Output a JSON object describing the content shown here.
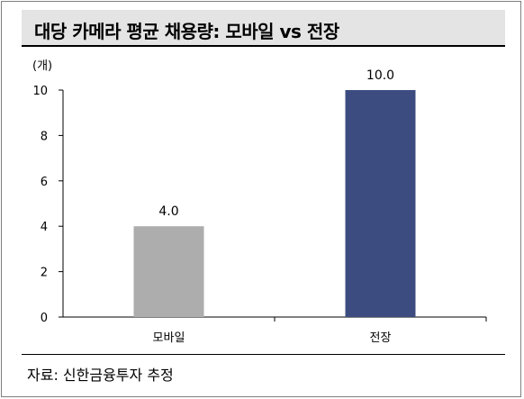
{
  "title": "대당 카메라 평균 채용량: 모바일 vs 전장",
  "unit_label": "(개)",
  "source": "자료: 신한금융투자 추정",
  "chart_data": {
    "type": "bar",
    "categories": [
      "모바일",
      "전장"
    ],
    "values": [
      4.0,
      10.0
    ],
    "value_labels": [
      "4.0",
      "10.0"
    ],
    "colors": [
      "#adadad",
      "#3d4c80"
    ],
    "ylim": [
      0,
      10
    ],
    "yticks": [
      0,
      2,
      4,
      6,
      8,
      10
    ],
    "grid": false,
    "legend": "none"
  }
}
